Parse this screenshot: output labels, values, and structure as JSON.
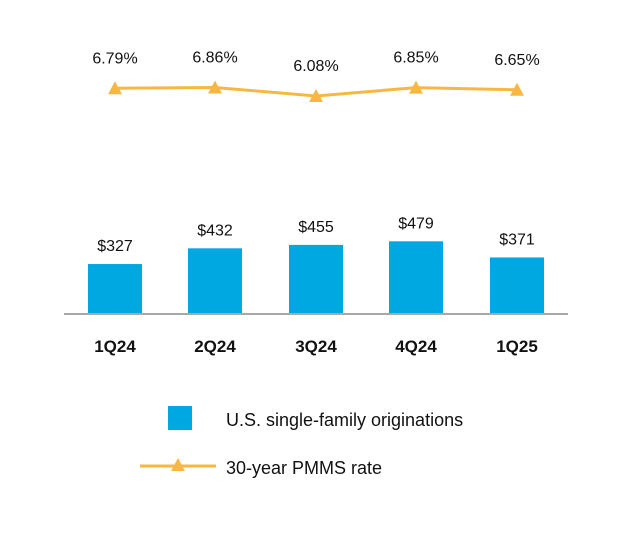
{
  "chart_data": {
    "type": "bar",
    "categories": [
      "1Q24",
      "2Q24",
      "3Q24",
      "4Q24",
      "1Q25"
    ],
    "series": [
      {
        "name": "U.S. single-family originations",
        "type": "bar",
        "values": [
          327,
          432,
          455,
          479,
          371
        ],
        "labels": [
          "$327",
          "$432",
          "$455",
          "$479",
          "$371"
        ],
        "color": "#00A8E1"
      },
      {
        "name": "30-year PMMS rate",
        "type": "line",
        "values": [
          6.79,
          6.86,
          6.08,
          6.85,
          6.65
        ],
        "labels": [
          "6.79%",
          "6.86%",
          "6.08%",
          "6.85%",
          "6.65%"
        ],
        "color": "#F7B843",
        "marker": "triangle"
      }
    ],
    "legend_position": "bottom",
    "grid": false
  }
}
